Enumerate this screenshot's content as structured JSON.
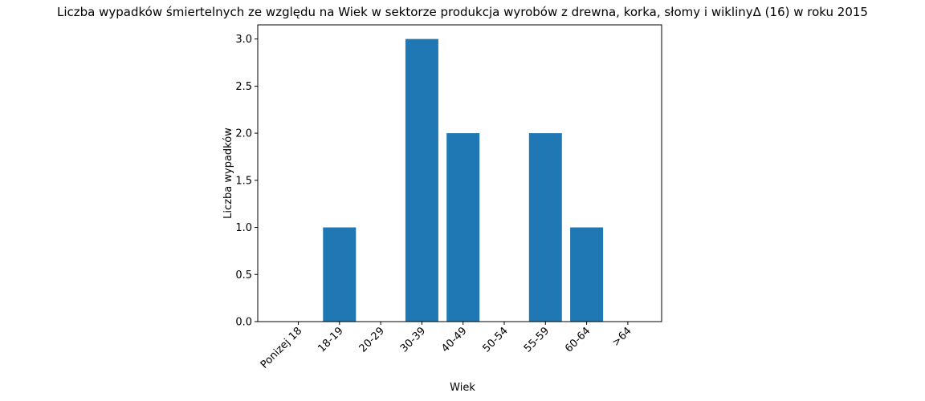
{
  "chart_data": {
    "type": "bar",
    "title": "Liczba wypadków śmiertelnych ze względu na Wiek w sektorze produkcja wyrobów z drewna, korka, słomy i wiklinyΔ (16)  w roku 2015",
    "xlabel": "Wiek",
    "ylabel": "Liczba wypadków",
    "categories": [
      "Ponizej 18",
      "18-19",
      "20-29",
      "30-39",
      "40-49",
      "50-54",
      "55-59",
      "60-64",
      ">64"
    ],
    "values": [
      0,
      1,
      0,
      3,
      2,
      0,
      2,
      1,
      0
    ],
    "ylim": [
      0,
      3.15
    ],
    "yticks": [
      "0.0",
      "0.5",
      "1.0",
      "1.5",
      "2.0",
      "2.5",
      "3.0"
    ],
    "bar_color": "#1f77b4",
    "grid": false,
    "legend": "none"
  }
}
